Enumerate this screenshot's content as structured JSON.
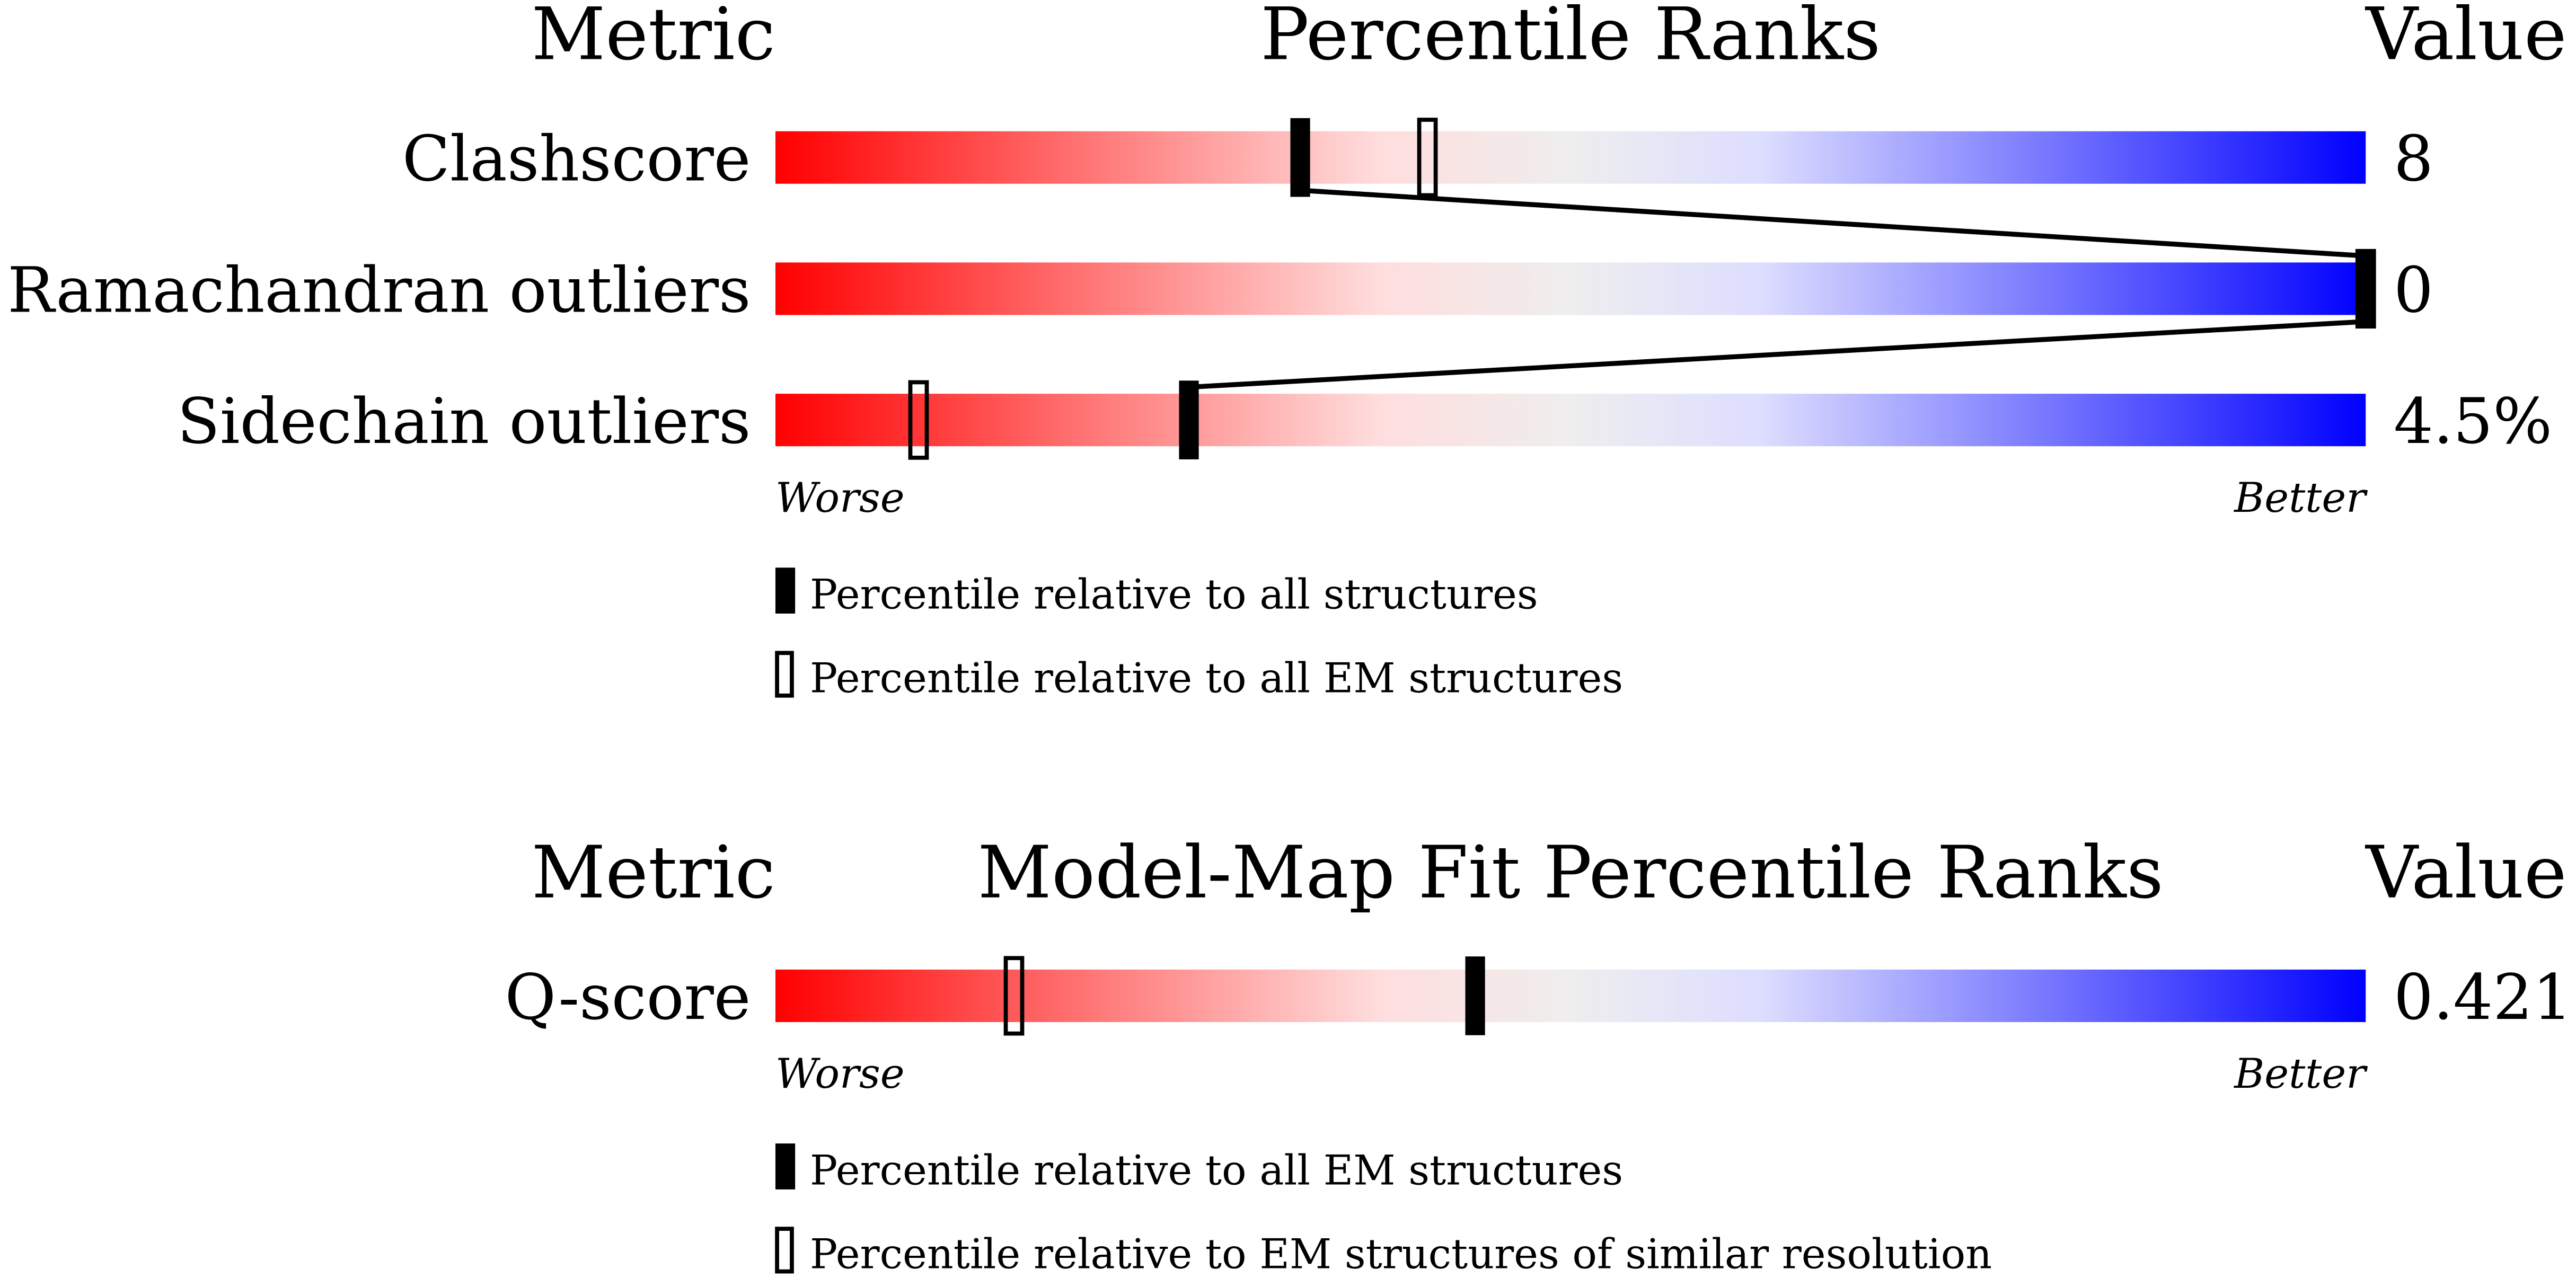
{
  "chart_data": [
    {
      "type": "percentile-slider",
      "metric_header": "Metric",
      "title": "Percentile Ranks",
      "value_header": "Value",
      "categories": [
        "Clashscore",
        "Ramachandran outliers",
        "Sidechain outliers"
      ],
      "values": [
        8,
        0,
        4.5
      ],
      "value_labels": [
        "8",
        "0",
        "4.5%"
      ],
      "series": [
        {
          "name": "Percentile relative to all structures",
          "style": "filled",
          "color": "#000000",
          "values": [
            33,
            100,
            26
          ]
        },
        {
          "name": "Percentile relative to all EM structures",
          "style": "open",
          "color": "#000000",
          "values": [
            41,
            100,
            9
          ]
        }
      ],
      "xlim": [
        0,
        100
      ],
      "worse_label": "Worse",
      "better_label": "Better",
      "connect": "filled"
    },
    {
      "type": "percentile-slider",
      "metric_header": "Metric",
      "title": "Model-Map Fit Percentile Ranks",
      "value_header": "Value",
      "categories": [
        "Q-score"
      ],
      "values": [
        0.421
      ],
      "value_labels": [
        "0.421"
      ],
      "series": [
        {
          "name": "Percentile relative to all EM structures",
          "style": "filled",
          "color": "#000000",
          "values": [
            44
          ]
        },
        {
          "name": "Percentile relative to EM structures of similar resolution",
          "style": "open",
          "color": "#000000",
          "values": [
            15
          ]
        }
      ],
      "xlim": [
        0,
        100
      ],
      "worse_label": "Worse",
      "better_label": "Better",
      "connect": "filled"
    }
  ]
}
